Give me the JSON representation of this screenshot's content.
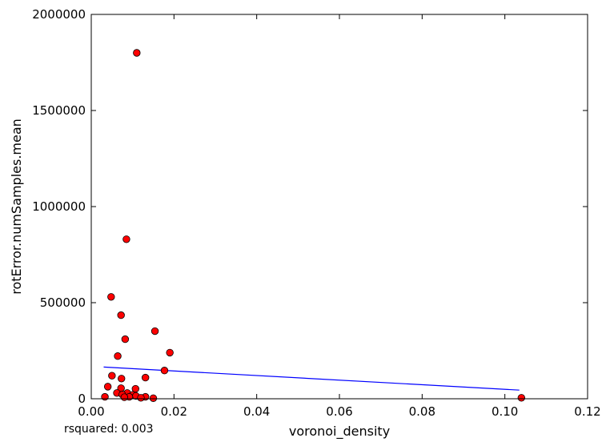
{
  "chart_data": {
    "type": "scatter",
    "xlabel": "voronoi_density",
    "ylabel": "rotError.numSamples.mean",
    "xlim": [
      0.0,
      0.12
    ],
    "ylim": [
      0,
      2000000
    ],
    "x_ticks": [
      "0.00",
      "0.02",
      "0.04",
      "0.06",
      "0.08",
      "0.10",
      "0.12"
    ],
    "y_ticks": [
      "0",
      "500000",
      "1000000",
      "1500000",
      "2000000"
    ],
    "grid": false,
    "points": [
      {
        "x": 0.011,
        "y": 1800000
      },
      {
        "x": 0.0085,
        "y": 830000
      },
      {
        "x": 0.0048,
        "y": 530000
      },
      {
        "x": 0.0072,
        "y": 435000
      },
      {
        "x": 0.0154,
        "y": 352000
      },
      {
        "x": 0.0082,
        "y": 310000
      },
      {
        "x": 0.019,
        "y": 240000
      },
      {
        "x": 0.0064,
        "y": 222000
      },
      {
        "x": 0.0177,
        "y": 147000
      },
      {
        "x": 0.005,
        "y": 120000
      },
      {
        "x": 0.0131,
        "y": 110000
      },
      {
        "x": 0.0073,
        "y": 105000
      },
      {
        "x": 0.004,
        "y": 63000
      },
      {
        "x": 0.0072,
        "y": 55000
      },
      {
        "x": 0.0107,
        "y": 52000
      },
      {
        "x": 0.0062,
        "y": 30000
      },
      {
        "x": 0.0087,
        "y": 30000
      },
      {
        "x": 0.0075,
        "y": 22000
      },
      {
        "x": 0.01,
        "y": 20000
      },
      {
        "x": 0.0108,
        "y": 15000
      },
      {
        "x": 0.0092,
        "y": 10000
      },
      {
        "x": 0.0033,
        "y": 10000
      },
      {
        "x": 0.0131,
        "y": 10000
      },
      {
        "x": 0.008,
        "y": 8000
      },
      {
        "x": 0.012,
        "y": 5000
      },
      {
        "x": 0.015,
        "y": 3000
      },
      {
        "x": 0.104,
        "y": 5000
      }
    ],
    "fit_line": {
      "x": [
        0.003,
        0.1035
      ],
      "y": [
        165000,
        45000
      ]
    },
    "colors": {
      "marker_fill": "#ff0000",
      "marker_edge": "#000000",
      "fit_line": "#0000ff"
    }
  },
  "annotation": {
    "rsquared_text": "rsquared: 0.003"
  }
}
